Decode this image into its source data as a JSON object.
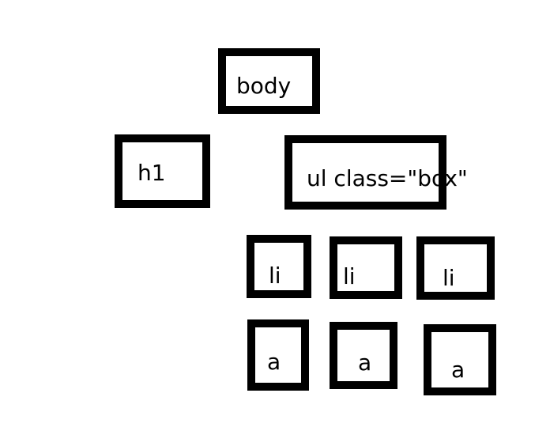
{
  "diagram": {
    "nodes": {
      "body": {
        "label": "body"
      },
      "h1": {
        "label": "h1"
      },
      "ul": {
        "label": "ul class=\"box\""
      },
      "li1": {
        "label": "li"
      },
      "li2": {
        "label": "li"
      },
      "li3": {
        "label": "li"
      },
      "a1": {
        "label": "a"
      },
      "a2": {
        "label": "a"
      },
      "a3": {
        "label": "a"
      }
    },
    "border_color": "#000000",
    "background_color": "#ffffff"
  }
}
